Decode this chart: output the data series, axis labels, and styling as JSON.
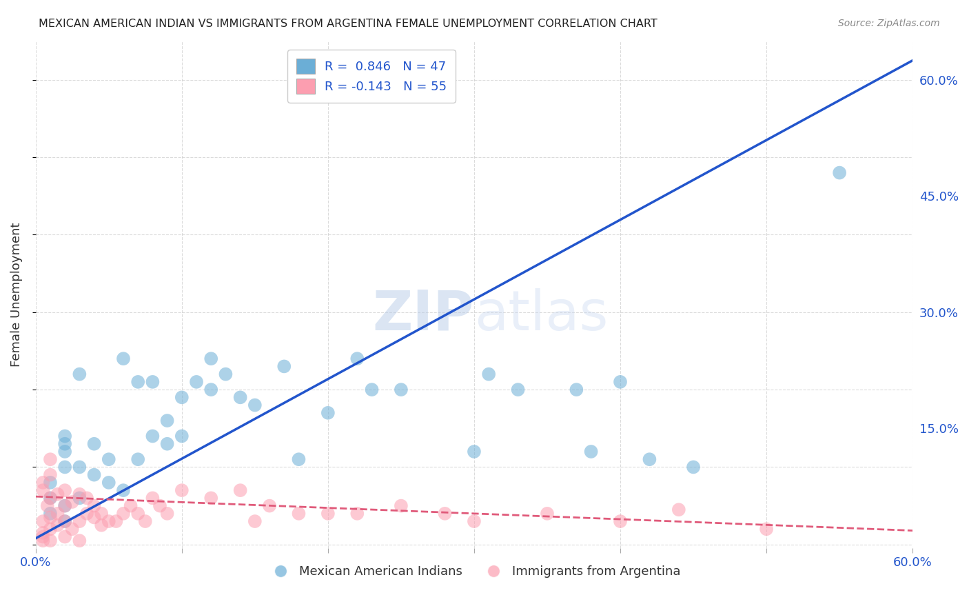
{
  "title": "MEXICAN AMERICAN INDIAN VS IMMIGRANTS FROM ARGENTINA FEMALE UNEMPLOYMENT CORRELATION CHART",
  "source": "Source: ZipAtlas.com",
  "ylabel": "Female Unemployment",
  "xlim": [
    0,
    0.6
  ],
  "ylim": [
    -0.005,
    0.65
  ],
  "legend_r1": "R =  0.846   N = 47",
  "legend_r2": "R = -0.143   N = 55",
  "blue_color": "#6baed6",
  "pink_color": "#fc9eb0",
  "blue_line_color": "#2255cc",
  "pink_line_color": "#e05a7a",
  "watermark_zip": "ZIP",
  "watermark_atlas": "atlas",
  "blue_scatter": [
    [
      0.02,
      0.1
    ],
    [
      0.01,
      0.08
    ],
    [
      0.01,
      0.06
    ],
    [
      0.02,
      0.05
    ],
    [
      0.03,
      0.06
    ],
    [
      0.02,
      0.12
    ],
    [
      0.03,
      0.1
    ],
    [
      0.04,
      0.09
    ],
    [
      0.05,
      0.08
    ],
    [
      0.06,
      0.07
    ],
    [
      0.07,
      0.11
    ],
    [
      0.08,
      0.14
    ],
    [
      0.09,
      0.13
    ],
    [
      0.1,
      0.19
    ],
    [
      0.11,
      0.21
    ],
    [
      0.12,
      0.2
    ],
    [
      0.13,
      0.22
    ],
    [
      0.14,
      0.19
    ],
    [
      0.15,
      0.18
    ],
    [
      0.03,
      0.22
    ],
    [
      0.06,
      0.24
    ],
    [
      0.07,
      0.21
    ],
    [
      0.08,
      0.21
    ],
    [
      0.12,
      0.24
    ],
    [
      0.17,
      0.23
    ],
    [
      0.18,
      0.11
    ],
    [
      0.2,
      0.17
    ],
    [
      0.22,
      0.24
    ],
    [
      0.23,
      0.2
    ],
    [
      0.25,
      0.2
    ],
    [
      0.3,
      0.12
    ],
    [
      0.31,
      0.22
    ],
    [
      0.33,
      0.2
    ],
    [
      0.37,
      0.2
    ],
    [
      0.38,
      0.12
    ],
    [
      0.4,
      0.21
    ],
    [
      0.42,
      0.11
    ],
    [
      0.45,
      0.1
    ],
    [
      0.02,
      0.14
    ],
    [
      0.02,
      0.13
    ],
    [
      0.04,
      0.13
    ],
    [
      0.05,
      0.11
    ],
    [
      0.02,
      0.03
    ],
    [
      0.55,
      0.48
    ],
    [
      0.01,
      0.04
    ],
    [
      0.09,
      0.16
    ],
    [
      0.1,
      0.14
    ]
  ],
  "pink_scatter": [
    [
      0.01,
      0.11
    ],
    [
      0.005,
      0.08
    ],
    [
      0.01,
      0.06
    ],
    [
      0.02,
      0.05
    ],
    [
      0.015,
      0.04
    ],
    [
      0.01,
      0.035
    ],
    [
      0.005,
      0.03
    ],
    [
      0.02,
      0.03
    ],
    [
      0.015,
      0.025
    ],
    [
      0.01,
      0.02
    ],
    [
      0.005,
      0.015
    ],
    [
      0.005,
      0.01
    ],
    [
      0.01,
      0.005
    ],
    [
      0.005,
      0.005
    ],
    [
      0.02,
      0.01
    ],
    [
      0.03,
      0.005
    ],
    [
      0.025,
      0.02
    ],
    [
      0.03,
      0.03
    ],
    [
      0.035,
      0.04
    ],
    [
      0.04,
      0.05
    ],
    [
      0.045,
      0.04
    ],
    [
      0.05,
      0.03
    ],
    [
      0.055,
      0.03
    ],
    [
      0.06,
      0.04
    ],
    [
      0.065,
      0.05
    ],
    [
      0.07,
      0.04
    ],
    [
      0.075,
      0.03
    ],
    [
      0.08,
      0.06
    ],
    [
      0.085,
      0.05
    ],
    [
      0.09,
      0.04
    ],
    [
      0.1,
      0.07
    ],
    [
      0.12,
      0.06
    ],
    [
      0.14,
      0.07
    ],
    [
      0.15,
      0.03
    ],
    [
      0.16,
      0.05
    ],
    [
      0.18,
      0.04
    ],
    [
      0.2,
      0.04
    ],
    [
      0.22,
      0.04
    ],
    [
      0.25,
      0.05
    ],
    [
      0.28,
      0.04
    ],
    [
      0.3,
      0.03
    ],
    [
      0.35,
      0.04
    ],
    [
      0.4,
      0.03
    ],
    [
      0.44,
      0.045
    ],
    [
      0.5,
      0.02
    ],
    [
      0.015,
      0.065
    ],
    [
      0.02,
      0.07
    ],
    [
      0.025,
      0.055
    ],
    [
      0.03,
      0.065
    ],
    [
      0.035,
      0.06
    ],
    [
      0.04,
      0.035
    ],
    [
      0.045,
      0.025
    ],
    [
      0.005,
      0.07
    ],
    [
      0.01,
      0.09
    ],
    [
      0.008,
      0.05
    ]
  ],
  "blue_line_x": [
    0.0,
    0.6
  ],
  "blue_line_y": [
    0.008,
    0.625
  ],
  "pink_line_x": [
    0.0,
    0.6
  ],
  "pink_line_y": [
    0.062,
    0.018
  ],
  "background_color": "#ffffff",
  "grid_color": "#cccccc"
}
